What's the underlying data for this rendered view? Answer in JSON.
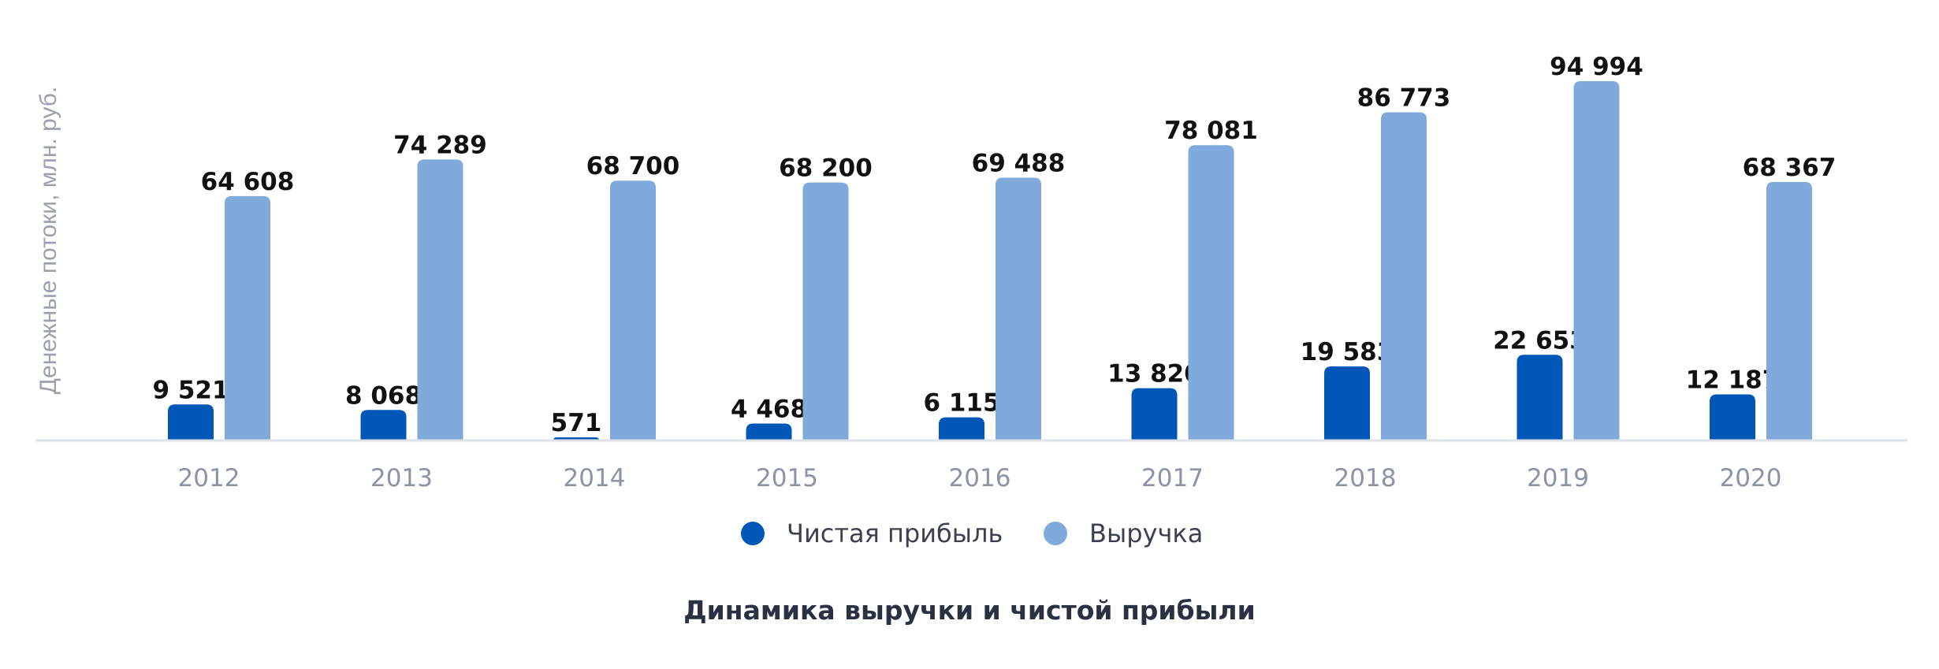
{
  "chart_data": {
    "type": "bar",
    "title": "Динамика выручки и чистой прибыли",
    "ylabel": "Денежные потоки, млн. руб.",
    "xlabel": "",
    "categories": [
      "2012",
      "2013",
      "2014",
      "2015",
      "2016",
      "2017",
      "2018",
      "2019",
      "2020"
    ],
    "series": [
      {
        "name": "Чистая прибыль",
        "color": "#0057b8",
        "values": [
          9521,
          8068,
          571,
          4468,
          6115,
          13820,
          19583,
          22653,
          12187
        ],
        "labels": [
          "9 521",
          "8 068",
          "571",
          "4 468",
          "6 115",
          "13 820",
          "19 583",
          "22 653",
          "12 187"
        ]
      },
      {
        "name": "Выручка",
        "color": "#80aadb",
        "values": [
          64608,
          74289,
          68700,
          68200,
          69488,
          78081,
          86773,
          94994,
          68367
        ],
        "labels": [
          "64 608",
          "74 289",
          "68 700",
          "68 200",
          "69 488",
          "78 081",
          "86 773",
          "94 994",
          "68 367"
        ]
      }
    ],
    "ylim": [
      0,
      100000
    ],
    "grid": false,
    "legend_position": "bottom-center"
  }
}
